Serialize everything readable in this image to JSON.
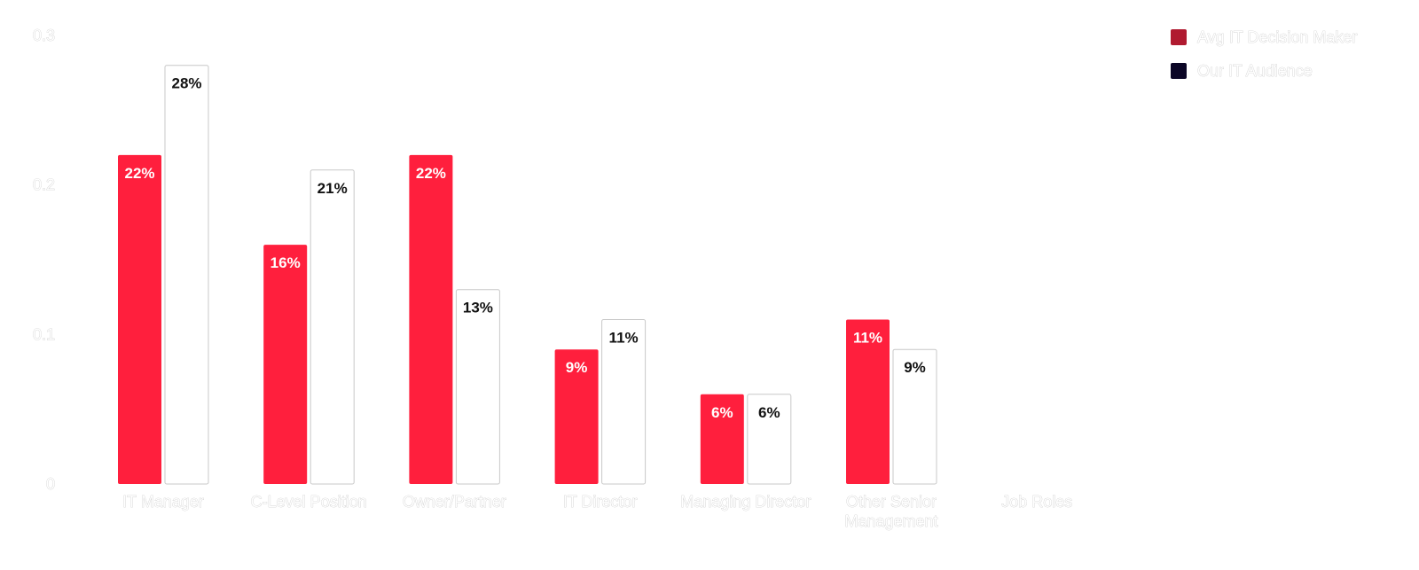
{
  "chart_data": {
    "type": "bar",
    "categories": [
      [
        "IT Manager"
      ],
      [
        "C-Level Position"
      ],
      [
        "Owner/Partner"
      ],
      [
        "IT Director"
      ],
      [
        "Managing Director"
      ],
      [
        "Other Senior",
        "Management"
      ],
      [
        "Job Roles"
      ]
    ],
    "series": [
      {
        "name": "Avg IT Decision Maker",
        "values": [
          0.22,
          0.16,
          0.22,
          0.09,
          0.06,
          0.11,
          null
        ],
        "labels": [
          "22%",
          "16%",
          "22%",
          "9%",
          "6%",
          "11%",
          ""
        ],
        "color": "#ff1f3d",
        "legend_color": "#b01a30",
        "label_color": "#ffffff"
      },
      {
        "name": "Our IT Audience",
        "values": [
          0.28,
          0.21,
          0.13,
          0.11,
          0.06,
          0.09,
          null
        ],
        "labels": [
          "28%",
          "21%",
          "13%",
          "11%",
          "6%",
          "9%",
          ""
        ],
        "color": "#ffffff",
        "border_color": "#c8c8c8",
        "legend_color": "#0b0626",
        "label_color": "#111111"
      }
    ],
    "y_ticks": [
      {
        "value": 0,
        "label": "0"
      },
      {
        "value": 0.1,
        "label": "0.1"
      },
      {
        "value": 0.2,
        "label": "0.2"
      },
      {
        "value": 0.3,
        "label": "0.3"
      }
    ],
    "ylim": [
      0,
      0.3
    ],
    "grid": false,
    "legend_position": "top-right",
    "title": "",
    "xlabel": "",
    "ylabel": ""
  }
}
